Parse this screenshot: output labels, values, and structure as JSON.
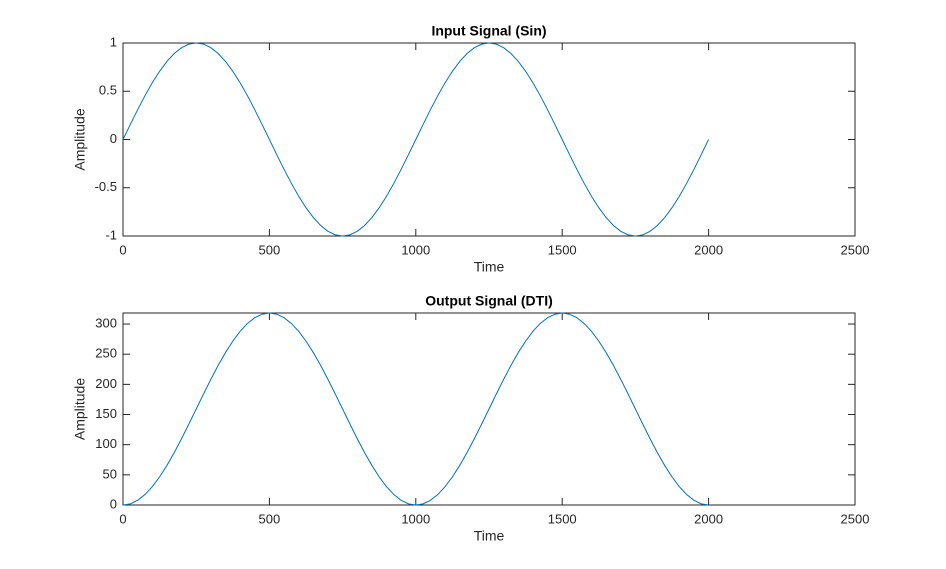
{
  "chart_data": [
    {
      "type": "line",
      "title": "Input Signal (Sin)",
      "xlabel": "Time",
      "ylabel": "Amplitude",
      "color": "#0072bd",
      "x": [
        0,
        25,
        50,
        75,
        100,
        125,
        150,
        175,
        200,
        225,
        250,
        275,
        300,
        325,
        350,
        375,
        400,
        425,
        450,
        475,
        500,
        525,
        550,
        575,
        600,
        625,
        650,
        675,
        700,
        725,
        750,
        775,
        800,
        825,
        850,
        875,
        900,
        925,
        950,
        975,
        1000,
        1025,
        1050,
        1075,
        1100,
        1125,
        1150,
        1175,
        1200,
        1225,
        1250,
        1275,
        1300,
        1325,
        1350,
        1375,
        1400,
        1425,
        1450,
        1475,
        1500,
        1525,
        1550,
        1575,
        1600,
        1625,
        1650,
        1675,
        1700,
        1725,
        1750,
        1775,
        1800,
        1825,
        1850,
        1875,
        1900,
        1925,
        1950,
        1975,
        2000
      ],
      "values": [
        0,
        0.156,
        0.309,
        0.454,
        0.588,
        0.707,
        0.809,
        0.891,
        0.951,
        0.988,
        1,
        0.988,
        0.951,
        0.891,
        0.809,
        0.707,
        0.588,
        0.454,
        0.309,
        0.156,
        0,
        -0.156,
        -0.309,
        -0.454,
        -0.588,
        -0.707,
        -0.809,
        -0.891,
        -0.951,
        -0.988,
        -1,
        -0.988,
        -0.951,
        -0.891,
        -0.809,
        -0.707,
        -0.588,
        -0.454,
        -0.309,
        -0.156,
        0,
        0.156,
        0.309,
        0.454,
        0.588,
        0.707,
        0.809,
        0.891,
        0.951,
        0.988,
        1,
        0.988,
        0.951,
        0.891,
        0.809,
        0.707,
        0.588,
        0.454,
        0.309,
        0.156,
        0,
        -0.156,
        -0.309,
        -0.454,
        -0.588,
        -0.707,
        -0.809,
        -0.891,
        -0.951,
        -0.988,
        -1,
        -0.988,
        -0.951,
        -0.891,
        -0.809,
        -0.707,
        -0.588,
        -0.454,
        -0.309,
        -0.156,
        0
      ],
      "xlim": [
        0,
        2500
      ],
      "xticks": [
        0,
        500,
        1000,
        1500,
        2000,
        2500
      ],
      "ylim": [
        -1,
        1
      ],
      "yticks": [
        -1,
        -0.5,
        0,
        0.5,
        1
      ]
    },
    {
      "type": "line",
      "title": "Output Signal (DTI)",
      "xlabel": "Time",
      "ylabel": "Amplitude",
      "color": "#0072bd",
      "x": [
        0,
        25,
        50,
        75,
        100,
        125,
        150,
        175,
        200,
        225,
        250,
        275,
        300,
        325,
        350,
        375,
        400,
        425,
        450,
        475,
        500,
        525,
        550,
        575,
        600,
        625,
        650,
        675,
        700,
        725,
        750,
        775,
        800,
        825,
        850,
        875,
        900,
        925,
        950,
        975,
        1000,
        1025,
        1050,
        1075,
        1100,
        1125,
        1150,
        1175,
        1200,
        1225,
        1250,
        1275,
        1300,
        1325,
        1350,
        1375,
        1400,
        1425,
        1450,
        1475,
        1500,
        1525,
        1550,
        1575,
        1600,
        1625,
        1650,
        1675,
        1700,
        1725,
        1750,
        1775,
        1800,
        1825,
        1850,
        1875,
        1900,
        1925,
        1950,
        1975,
        2000
      ],
      "values": [
        0,
        1.9,
        7.8,
        17.3,
        30.4,
        46.6,
        65.6,
        86.9,
        110.0,
        134.3,
        159.2,
        184.0,
        208.3,
        231.4,
        252.7,
        271.7,
        287.9,
        301.0,
        310.5,
        316.3,
        318.3,
        316.3,
        310.5,
        301.0,
        287.9,
        271.7,
        252.7,
        231.4,
        208.3,
        184.0,
        159.2,
        134.3,
        110.0,
        86.9,
        65.6,
        46.6,
        30.4,
        17.3,
        7.8,
        1.9,
        0,
        1.9,
        7.8,
        17.3,
        30.4,
        46.6,
        65.6,
        86.9,
        110.0,
        134.3,
        159.2,
        184.0,
        208.3,
        231.4,
        252.7,
        271.7,
        287.9,
        301.0,
        310.5,
        316.3,
        318.3,
        316.3,
        310.5,
        301.0,
        287.9,
        271.7,
        252.7,
        231.4,
        208.3,
        184.0,
        159.2,
        134.3,
        110.0,
        86.9,
        65.6,
        46.6,
        30.4,
        17.3,
        7.8,
        1.9,
        0
      ],
      "xlim": [
        0,
        2500
      ],
      "xticks": [
        0,
        500,
        1000,
        1500,
        2000,
        2500
      ],
      "ylim": [
        0,
        318.3
      ],
      "yticks": [
        0,
        50,
        100,
        150,
        200,
        250,
        300
      ]
    }
  ]
}
